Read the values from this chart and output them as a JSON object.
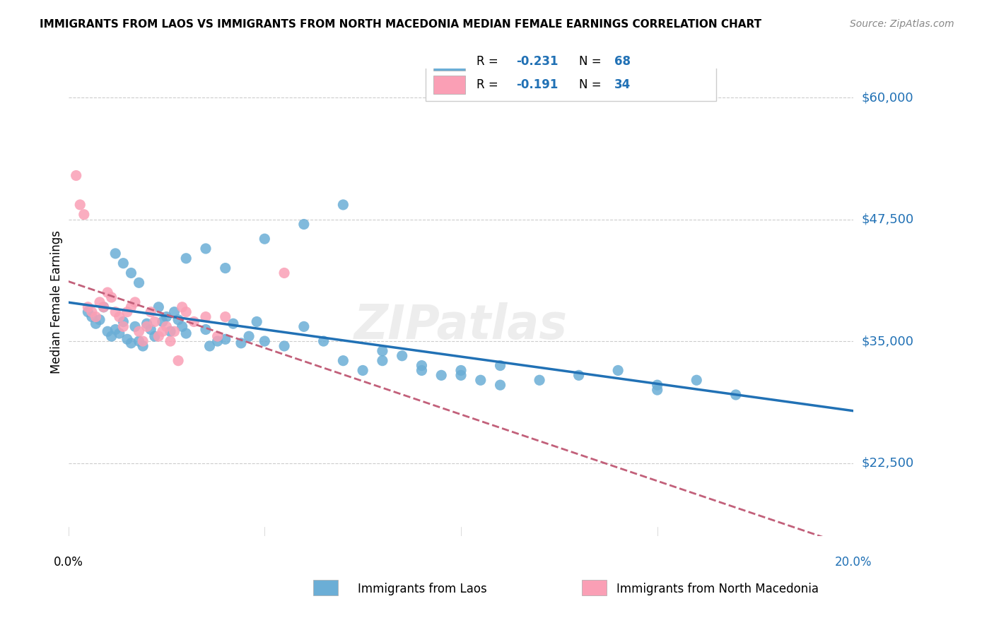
{
  "title": "IMMIGRANTS FROM LAOS VS IMMIGRANTS FROM NORTH MACEDONIA MEDIAN FEMALE EARNINGS CORRELATION CHART",
  "source": "Source: ZipAtlas.com",
  "xlabel_bottom_left": "0.0%",
  "xlabel_bottom_right": "20.0%",
  "ylabel": "Median Female Earnings",
  "yticks": [
    22500,
    35000,
    47500,
    60000
  ],
  "ytick_labels": [
    "$22,500",
    "$35,000",
    "$47,500",
    "$60,000"
  ],
  "xmin": 0.0,
  "xmax": 0.2,
  "ymin": 15000,
  "ymax": 63000,
  "blue_color": "#6baed6",
  "pink_color": "#fa9fb5",
  "blue_line_color": "#2171b5",
  "pink_line_color": "#c2607a",
  "label_color": "#2171b5",
  "R_blue": -0.231,
  "N_blue": 68,
  "R_pink": -0.191,
  "N_pink": 34,
  "watermark": "ZIPatlas",
  "blue_scatter_x": [
    0.005,
    0.006,
    0.007,
    0.008,
    0.009,
    0.01,
    0.011,
    0.012,
    0.013,
    0.014,
    0.015,
    0.016,
    0.017,
    0.018,
    0.019,
    0.02,
    0.021,
    0.022,
    0.023,
    0.024,
    0.025,
    0.026,
    0.027,
    0.028,
    0.029,
    0.03,
    0.035,
    0.036,
    0.038,
    0.04,
    0.042,
    0.044,
    0.046,
    0.048,
    0.05,
    0.055,
    0.06,
    0.065,
    0.07,
    0.075,
    0.08,
    0.085,
    0.09,
    0.095,
    0.1,
    0.105,
    0.11,
    0.12,
    0.13,
    0.14,
    0.15,
    0.16,
    0.17,
    0.012,
    0.014,
    0.016,
    0.018,
    0.03,
    0.035,
    0.04,
    0.05,
    0.06,
    0.07,
    0.08,
    0.09,
    0.1,
    0.11,
    0.15
  ],
  "blue_scatter_y": [
    38000,
    37500,
    36800,
    37200,
    38500,
    36000,
    35500,
    36200,
    35800,
    37000,
    35200,
    34800,
    36500,
    35000,
    34500,
    36800,
    36200,
    35500,
    38500,
    37000,
    37500,
    36000,
    38000,
    37200,
    36500,
    35800,
    36200,
    34500,
    35000,
    35200,
    36800,
    34800,
    35500,
    37000,
    35000,
    34500,
    36500,
    35000,
    33000,
    32000,
    34000,
    33500,
    32500,
    31500,
    32000,
    31000,
    32500,
    31000,
    31500,
    32000,
    30500,
    31000,
    29500,
    44000,
    43000,
    42000,
    41000,
    43500,
    44500,
    42500,
    45500,
    47000,
    49000,
    33000,
    32000,
    31500,
    30500,
    30000
  ],
  "pink_scatter_x": [
    0.002,
    0.003,
    0.004,
    0.005,
    0.006,
    0.007,
    0.008,
    0.009,
    0.01,
    0.011,
    0.012,
    0.013,
    0.014,
    0.015,
    0.016,
    0.017,
    0.018,
    0.019,
    0.02,
    0.021,
    0.022,
    0.023,
    0.024,
    0.025,
    0.026,
    0.027,
    0.028,
    0.029,
    0.03,
    0.032,
    0.035,
    0.038,
    0.04,
    0.055
  ],
  "pink_scatter_y": [
    52000,
    49000,
    48000,
    38500,
    38000,
    37500,
    39000,
    38500,
    40000,
    39500,
    38000,
    37500,
    36500,
    38000,
    38500,
    39000,
    36000,
    35000,
    36500,
    38000,
    37000,
    35500,
    36000,
    36500,
    35000,
    36000,
    33000,
    38500,
    38000,
    37000,
    37500,
    35500,
    37500,
    42000
  ]
}
